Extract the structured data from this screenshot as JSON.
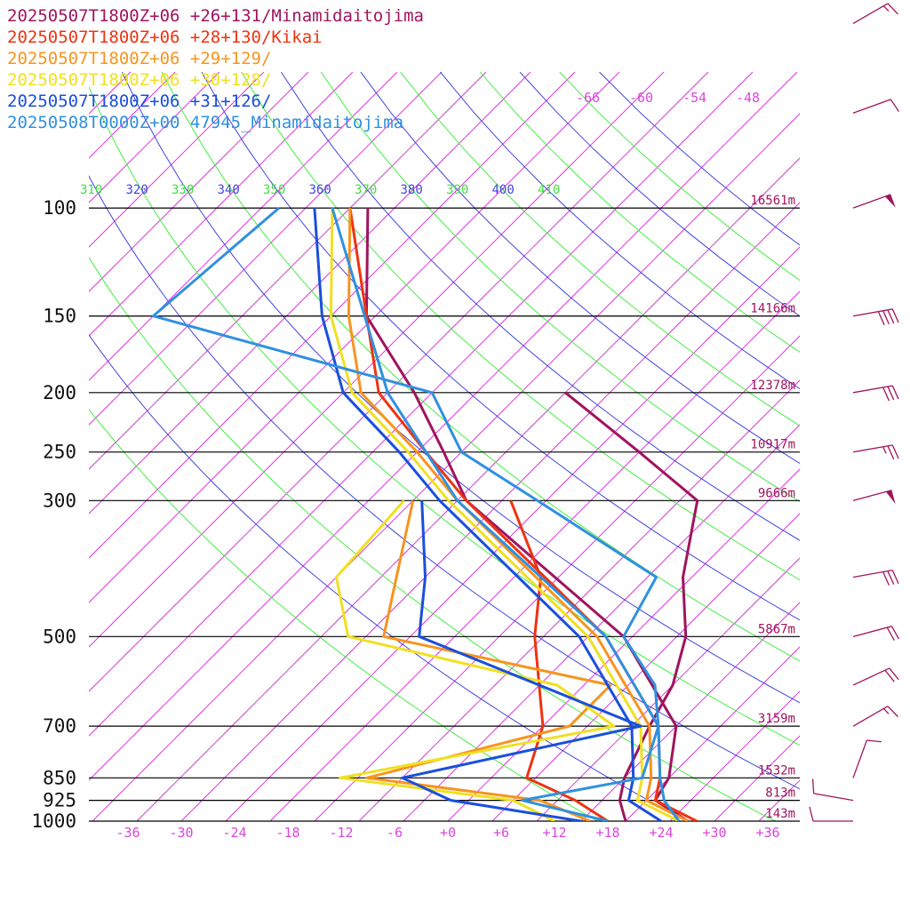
{
  "legend": [
    {
      "text": "20250507T1800Z+06 +26+131/Minamidaitojima",
      "color": "#a0145e"
    },
    {
      "text": "20250507T1800Z+06 +28+130/Kikai",
      "color": "#ee3311"
    },
    {
      "text": "20250507T1800Z+06 +29+129/",
      "color": "#f7941d"
    },
    {
      "text": "20250507T1800Z+06 +30+128/",
      "color": "#f0e020"
    },
    {
      "text": "20250507T1800Z+06 +31+126/",
      "color": "#1a4fdc"
    },
    {
      "text": "20250508T0000Z+00 47945_Minamidaitojima",
      "color": "#3090e0"
    }
  ],
  "chart_data": {
    "type": "line",
    "pressure_levels": [
      {
        "p": 100,
        "label": "100",
        "height": "16561m"
      },
      {
        "p": 150,
        "label": "150",
        "height": "14166m"
      },
      {
        "p": 200,
        "label": "200",
        "height": "12378m"
      },
      {
        "p": 250,
        "label": "250",
        "height": "10917m"
      },
      {
        "p": 300,
        "label": "300",
        "height": "9666m"
      },
      {
        "p": 500,
        "label": "500",
        "height": "5867m"
      },
      {
        "p": 700,
        "label": "700",
        "height": "3159m"
      },
      {
        "p": 850,
        "label": "850",
        "height": "1532m"
      },
      {
        "p": 925,
        "label": "925",
        "height": "813m"
      },
      {
        "p": 1000,
        "label": "1000",
        "height": "143m"
      }
    ],
    "x_ticks": [
      {
        "v": -36,
        "label": "-36"
      },
      {
        "v": -30,
        "label": "-30"
      },
      {
        "v": -24,
        "label": "-24"
      },
      {
        "v": -18,
        "label": "-18"
      },
      {
        "v": -12,
        "label": "-12"
      },
      {
        "v": -6,
        "label": "-6"
      },
      {
        "v": 0,
        "label": "+0"
      },
      {
        "v": 6,
        "label": "+6"
      },
      {
        "v": 12,
        "label": "+12"
      },
      {
        "v": 18,
        "label": "+18"
      },
      {
        "v": 24,
        "label": "+24"
      },
      {
        "v": 30,
        "label": "+30"
      },
      {
        "v": 36,
        "label": "+36"
      }
    ],
    "mixing_ratio_labels": [
      "-66",
      "-60",
      "-54",
      "-48"
    ],
    "theta_labels": [
      {
        "label": "310",
        "color": "#44dd44"
      },
      {
        "label": "320",
        "color": "#4444dd"
      },
      {
        "label": "330",
        "color": "#44dd44"
      },
      {
        "label": "340",
        "color": "#4444dd"
      },
      {
        "label": "350",
        "color": "#44dd44"
      },
      {
        "label": "360",
        "color": "#4444dd"
      },
      {
        "label": "370",
        "color": "#44dd44"
      },
      {
        "label": "380",
        "color": "#4444dd"
      },
      {
        "label": "390",
        "color": "#44dd44"
      },
      {
        "label": "400",
        "color": "#4444dd"
      },
      {
        "label": "410",
        "color": "#44dd44"
      }
    ],
    "colors": {
      "skew_isotherm": "#dd33dd",
      "dry_adiabat_a": "#44ee44",
      "dry_adiabat_b": "#4444dd",
      "pressure_line": "#000000",
      "height_label": "#a0145e",
      "tick_label": "#dd44dd"
    },
    "series": [
      {
        "name": "20250507T1800Z+06 +26+131/Minamidaitojima",
        "color": "#a0145e",
        "temperature": [
          [
            1000,
            27
          ],
          [
            925,
            21
          ],
          [
            850,
            20
          ],
          [
            700,
            15
          ],
          [
            500,
            -1
          ],
          [
            300,
            -34
          ],
          [
            250,
            -42
          ],
          [
            200,
            -52
          ],
          [
            150,
            -66
          ],
          [
            100,
            -78
          ]
        ],
        "dewpoint": [
          [
            1000,
            20
          ],
          [
            925,
            17
          ],
          [
            850,
            15
          ],
          [
            700,
            12
          ],
          [
            600,
            10
          ],
          [
            500,
            6
          ],
          [
            400,
            -1
          ],
          [
            300,
            -8
          ],
          [
            250,
            -20
          ],
          [
            200,
            -35
          ]
        ]
      },
      {
        "name": "20250507T1800Z+06 +28+130/Kikai",
        "color": "#ee3311",
        "temperature": [
          [
            1000,
            28
          ],
          [
            925,
            21
          ],
          [
            850,
            19
          ],
          [
            700,
            13
          ],
          [
            500,
            -3
          ],
          [
            300,
            -34
          ],
          [
            250,
            -44
          ],
          [
            200,
            -56
          ],
          [
            150,
            -66
          ],
          [
            100,
            -80
          ]
        ],
        "dewpoint": [
          [
            1000,
            18
          ],
          [
            925,
            12
          ],
          [
            850,
            4
          ],
          [
            700,
            0
          ],
          [
            500,
            -11
          ],
          [
            400,
            -17
          ],
          [
            300,
            -29
          ]
        ]
      },
      {
        "name": "20250507T1800Z+06 +29+129/",
        "color": "#f7941d",
        "temperature": [
          [
            1000,
            27
          ],
          [
            925,
            20
          ],
          [
            850,
            18
          ],
          [
            700,
            12
          ],
          [
            500,
            -4
          ],
          [
            300,
            -35
          ],
          [
            250,
            -45
          ],
          [
            200,
            -58
          ],
          [
            150,
            -68
          ],
          [
            100,
            -80
          ]
        ],
        "dewpoint": [
          [
            1000,
            16
          ],
          [
            925,
            8
          ],
          [
            850,
            -14
          ],
          [
            700,
            3
          ],
          [
            600,
            3
          ],
          [
            500,
            -28
          ],
          [
            300,
            -40
          ]
        ]
      },
      {
        "name": "20250507T1800Z+06 +30+128/",
        "color": "#f0e020",
        "temperature": [
          [
            1000,
            26
          ],
          [
            925,
            19
          ],
          [
            850,
            17
          ],
          [
            700,
            11
          ],
          [
            500,
            -5
          ],
          [
            300,
            -36
          ],
          [
            250,
            -46
          ],
          [
            200,
            -59
          ],
          [
            150,
            -70
          ],
          [
            100,
            -82
          ]
        ],
        "dewpoint": [
          [
            1000,
            12
          ],
          [
            925,
            5
          ],
          [
            850,
            -17
          ],
          [
            700,
            8
          ],
          [
            600,
            -3
          ],
          [
            500,
            -32
          ],
          [
            400,
            -40
          ],
          [
            300,
            -41
          ]
        ]
      },
      {
        "name": "20250507T1800Z+06 +31+126/",
        "color": "#1a4fdc",
        "temperature": [
          [
            1000,
            24
          ],
          [
            925,
            18
          ],
          [
            850,
            16
          ],
          [
            700,
            10
          ],
          [
            500,
            -6
          ],
          [
            300,
            -37
          ],
          [
            250,
            -47
          ],
          [
            200,
            -60
          ],
          [
            150,
            -71
          ],
          [
            100,
            -84
          ]
        ],
        "dewpoint": [
          [
            1000,
            15
          ],
          [
            925,
            -2
          ],
          [
            850,
            -10
          ],
          [
            700,
            11
          ],
          [
            500,
            -24
          ],
          [
            400,
            -30
          ],
          [
            300,
            -39
          ]
        ]
      },
      {
        "name": "20250508T0000Z+00 47945_Minamidaitojima",
        "color": "#3090e0",
        "temperature": [
          [
            1000,
            26
          ],
          [
            925,
            22
          ],
          [
            850,
            19
          ],
          [
            700,
            13
          ],
          [
            500,
            -3
          ],
          [
            300,
            -35
          ],
          [
            200,
            -55
          ],
          [
            100,
            -82
          ]
        ],
        "dewpoint": [
          [
            1000,
            18
          ],
          [
            925,
            6
          ],
          [
            850,
            17
          ],
          [
            700,
            13
          ],
          [
            600,
            8
          ],
          [
            500,
            -1
          ],
          [
            400,
            -4
          ],
          [
            300,
            -26
          ],
          [
            250,
            -40
          ],
          [
            200,
            -50
          ],
          [
            150,
            -90
          ],
          [
            100,
            -88
          ]
        ]
      }
    ],
    "winds": [
      {
        "p": 1000,
        "dir": 90,
        "speed": 10
      },
      {
        "p": 925,
        "dir": 100,
        "speed": 10
      },
      {
        "p": 850,
        "dir": 200,
        "speed": 10
      },
      {
        "p": 700,
        "dir": 240,
        "speed": 15
      },
      {
        "p": 600,
        "dir": 245,
        "speed": 20
      },
      {
        "p": 500,
        "dir": 255,
        "speed": 20
      },
      {
        "p": 400,
        "dir": 260,
        "speed": 30
      },
      {
        "p": 300,
        "dir": 255,
        "speed": 50
      },
      {
        "p": 250,
        "dir": 260,
        "speed": 25
      },
      {
        "p": 200,
        "dir": 260,
        "speed": 30
      },
      {
        "p": 150,
        "dir": 260,
        "speed": 40
      },
      {
        "p": 100,
        "dir": 250,
        "speed": 50
      },
      {
        "p": 70,
        "dir": 250,
        "speed": 10
      },
      {
        "p": 50,
        "dir": 240,
        "speed": 15
      }
    ]
  }
}
